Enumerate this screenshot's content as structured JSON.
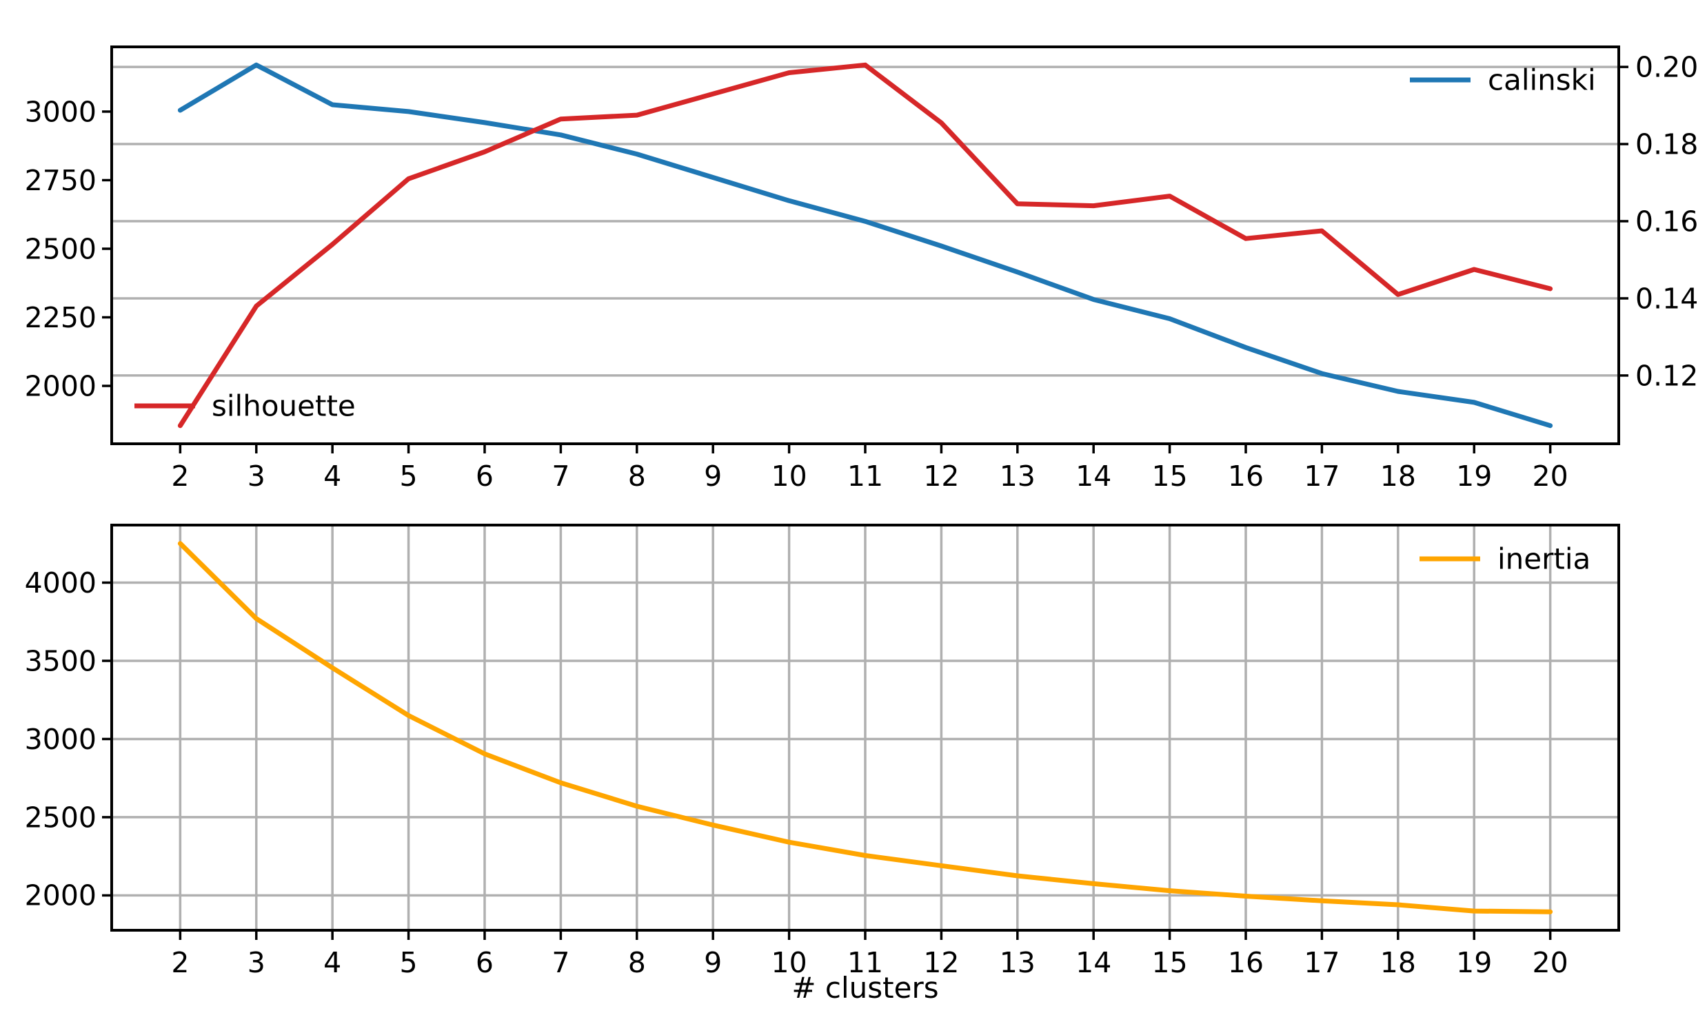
{
  "figure": {
    "background": "#ffffff",
    "accent_colors": {
      "calinski_blue": "#1f77b4",
      "silhouette_red": "#d62728",
      "inertia_orange": "#ffa500",
      "grid_gray": "#b0b0b0",
      "axis_black": "#000000"
    }
  },
  "chart_data": [
    {
      "type": "line",
      "title": "",
      "x": [
        2,
        3,
        4,
        5,
        6,
        7,
        8,
        9,
        10,
        11,
        12,
        13,
        14,
        15,
        16,
        17,
        18,
        19,
        20
      ],
      "x_tick_labels": [
        "2",
        "3",
        "4",
        "5",
        "6",
        "7",
        "8",
        "9",
        "10",
        "11",
        "12",
        "13",
        "14",
        "15",
        "16",
        "17",
        "18",
        "19",
        "20"
      ],
      "xlim": [
        1.1,
        20.9
      ],
      "grid": "horizontal, aligned to right-axis ticks",
      "series": [
        {
          "name": "calinski",
          "axis": "left",
          "color": "#1f77b4",
          "values": [
            3005,
            3170,
            3025,
            3000,
            2960,
            2915,
            2845,
            2760,
            2675,
            2600,
            2510,
            2415,
            2315,
            2245,
            2140,
            2045,
            1980,
            1940,
            1855
          ]
        },
        {
          "name": "silhouette",
          "axis": "right",
          "color": "#d62728",
          "values": [
            0.107,
            0.138,
            0.154,
            0.171,
            0.178,
            0.1865,
            0.1875,
            0.193,
            0.1985,
            0.2005,
            0.1855,
            0.1645,
            0.164,
            0.1665,
            0.1555,
            0.1575,
            0.141,
            0.1475,
            0.1425
          ]
        }
      ],
      "left_axis": {
        "color": "#1f77b4",
        "tick_values": [
          3000,
          2750,
          2500,
          2250,
          2000
        ],
        "tick_labels": [
          "3000",
          "2750",
          "2500",
          "2250",
          "2000"
        ],
        "ylim": [
          1789,
          3236
        ]
      },
      "right_axis": {
        "color": "#d62728",
        "tick_values": [
          0.2,
          0.18,
          0.16,
          0.14,
          0.12
        ],
        "tick_labels": [
          "0.20",
          "0.18",
          "0.16",
          "0.14",
          "0.12"
        ],
        "ylim": [
          0.1023,
          0.2052
        ]
      },
      "legend": [
        {
          "label": "calinski",
          "location": "upper right"
        },
        {
          "label": "silhouette",
          "location": "lower left"
        }
      ]
    },
    {
      "type": "line",
      "title": "",
      "xlabel": "# clusters",
      "x": [
        2,
        3,
        4,
        5,
        6,
        7,
        8,
        9,
        10,
        11,
        12,
        13,
        14,
        15,
        16,
        17,
        18,
        19,
        20
      ],
      "x_tick_labels": [
        "2",
        "3",
        "4",
        "5",
        "6",
        "7",
        "8",
        "9",
        "10",
        "11",
        "12",
        "13",
        "14",
        "15",
        "16",
        "17",
        "18",
        "19",
        "20"
      ],
      "xlim": [
        1.1,
        20.9
      ],
      "grid": "both",
      "series": [
        {
          "name": "inertia",
          "axis": "left",
          "color": "#ffa500",
          "values": [
            4250,
            3770,
            3455,
            3150,
            2905,
            2720,
            2570,
            2450,
            2340,
            2255,
            2190,
            2125,
            2075,
            2030,
            1995,
            1965,
            1940,
            1900,
            1895
          ]
        }
      ],
      "left_axis": {
        "color": "#000000",
        "tick_values": [
          4000,
          3500,
          3000,
          2500,
          2000
        ],
        "tick_labels": [
          "4000",
          "3500",
          "3000",
          "2500",
          "2000"
        ],
        "ylim": [
          1777,
          4368
        ]
      },
      "legend": [
        {
          "label": "inertia",
          "location": "upper right"
        }
      ]
    }
  ]
}
